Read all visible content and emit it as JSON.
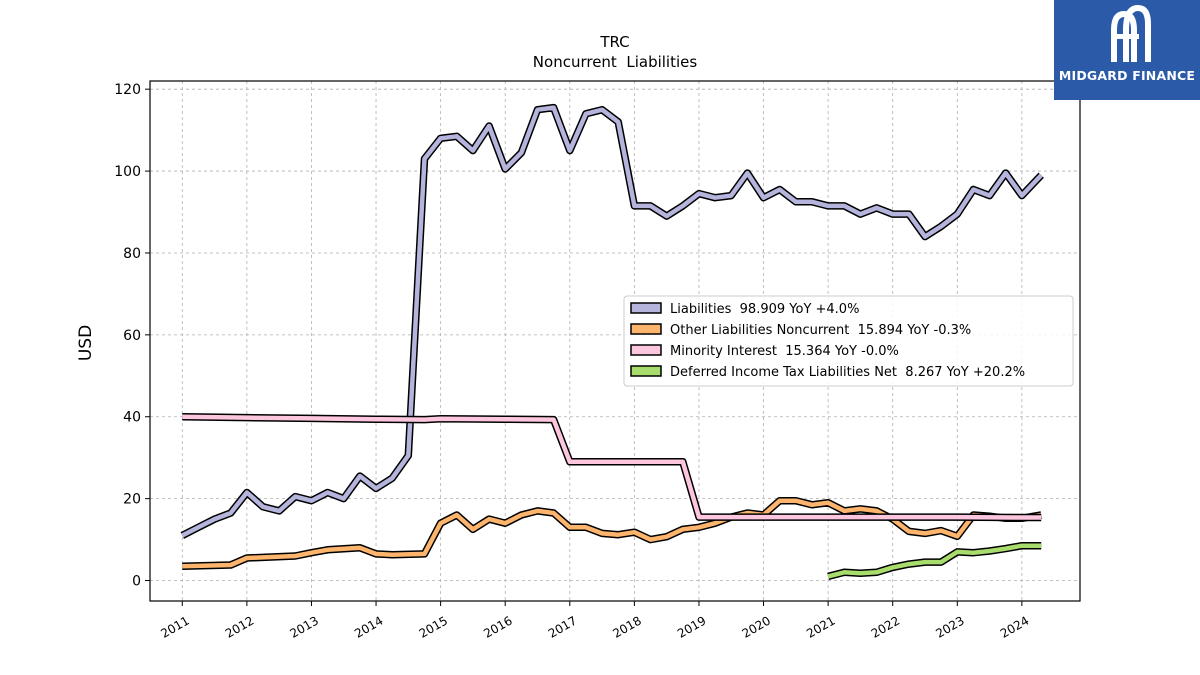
{
  "brand": {
    "name": "MIDGARD FINANCE",
    "color": "#2b5aa8"
  },
  "chart_data": {
    "type": "line",
    "title": "TRC",
    "subtitle": "Noncurrent  Liabilities",
    "ylabel": "USD",
    "xlabel": "",
    "ylim": [
      -5,
      122
    ],
    "xlim": [
      2010.5,
      2024.9
    ],
    "yticks": [
      0,
      20,
      40,
      60,
      80,
      100,
      120
    ],
    "xticks": [
      2011,
      2012,
      2013,
      2014,
      2015,
      2016,
      2017,
      2018,
      2019,
      2020,
      2021,
      2022,
      2023,
      2024
    ],
    "xtick_labels": [
      "2011",
      "2012",
      "2013",
      "2014",
      "2015",
      "2016",
      "2017",
      "2018",
      "2019",
      "2020",
      "2021",
      "2022",
      "2023",
      "2024"
    ],
    "grid": true,
    "legend_position": "center-right",
    "series": [
      {
        "name": "Liabilities",
        "legend": "Liabilities  98.909 YoY +4.0%",
        "color": "#b4b4dc",
        "points": [
          [
            2011.0,
            11
          ],
          [
            2011.25,
            13
          ],
          [
            2011.5,
            15
          ],
          [
            2011.75,
            16.5
          ],
          [
            2012.0,
            21.5
          ],
          [
            2012.25,
            18
          ],
          [
            2012.5,
            17
          ],
          [
            2012.75,
            20.5
          ],
          [
            2013.0,
            19.5
          ],
          [
            2013.25,
            21.5
          ],
          [
            2013.5,
            20
          ],
          [
            2013.75,
            25.5
          ],
          [
            2014.0,
            22.5
          ],
          [
            2014.25,
            25
          ],
          [
            2014.5,
            30.5
          ],
          [
            2014.75,
            103
          ],
          [
            2015.0,
            108
          ],
          [
            2015.25,
            108.5
          ],
          [
            2015.5,
            105
          ],
          [
            2015.75,
            111
          ],
          [
            2016.0,
            100.5
          ],
          [
            2016.25,
            104.5
          ],
          [
            2016.5,
            115
          ],
          [
            2016.75,
            115.5
          ],
          [
            2017.0,
            105
          ],
          [
            2017.25,
            114
          ],
          [
            2017.5,
            115
          ],
          [
            2017.75,
            112
          ],
          [
            2018.0,
            91.5
          ],
          [
            2018.25,
            91.5
          ],
          [
            2018.5,
            89
          ],
          [
            2018.75,
            91.5
          ],
          [
            2019.0,
            94.5
          ],
          [
            2019.25,
            93.5
          ],
          [
            2019.5,
            94
          ],
          [
            2019.75,
            99.5
          ],
          [
            2020.0,
            93.5
          ],
          [
            2020.25,
            95.5
          ],
          [
            2020.5,
            92.5
          ],
          [
            2020.75,
            92.5
          ],
          [
            2021.0,
            91.5
          ],
          [
            2021.25,
            91.5
          ],
          [
            2021.5,
            89.5
          ],
          [
            2021.75,
            91
          ],
          [
            2022.0,
            89.5
          ],
          [
            2022.25,
            89.5
          ],
          [
            2022.5,
            84
          ],
          [
            2022.75,
            86.5
          ],
          [
            2023.0,
            89.5
          ],
          [
            2023.25,
            95.5
          ],
          [
            2023.5,
            94
          ],
          [
            2023.75,
            99.5
          ],
          [
            2024.0,
            94
          ],
          [
            2024.3,
            99
          ]
        ]
      },
      {
        "name": "Other Liabilities Noncurrent",
        "legend": "Other Liabilities Noncurrent  15.894 YoY -0.3%",
        "color": "#fdb46c",
        "points": [
          [
            2011.0,
            3.5
          ],
          [
            2011.75,
            3.8
          ],
          [
            2012.0,
            5.5
          ],
          [
            2012.75,
            6
          ],
          [
            2013.0,
            6.8
          ],
          [
            2013.25,
            7.5
          ],
          [
            2013.75,
            8
          ],
          [
            2014.0,
            6.5
          ],
          [
            2014.25,
            6.3
          ],
          [
            2014.75,
            6.5
          ],
          [
            2015.0,
            14
          ],
          [
            2015.25,
            16
          ],
          [
            2015.5,
            12.5
          ],
          [
            2015.75,
            15
          ],
          [
            2016.0,
            14
          ],
          [
            2016.25,
            16
          ],
          [
            2016.5,
            17
          ],
          [
            2016.75,
            16.5
          ],
          [
            2017.0,
            13
          ],
          [
            2017.25,
            13
          ],
          [
            2017.5,
            11.5
          ],
          [
            2017.75,
            11.2
          ],
          [
            2018.0,
            11.8
          ],
          [
            2018.25,
            10
          ],
          [
            2018.5,
            10.7
          ],
          [
            2018.75,
            12.5
          ],
          [
            2019.0,
            13
          ],
          [
            2019.25,
            14
          ],
          [
            2019.5,
            15.5
          ],
          [
            2019.75,
            16.5
          ],
          [
            2020.0,
            16
          ],
          [
            2020.25,
            19.5
          ],
          [
            2020.5,
            19.5
          ],
          [
            2020.75,
            18.5
          ],
          [
            2021.0,
            19
          ],
          [
            2021.25,
            17
          ],
          [
            2021.5,
            17.5
          ],
          [
            2021.75,
            17
          ],
          [
            2022.0,
            15
          ],
          [
            2022.25,
            12
          ],
          [
            2022.5,
            11.5
          ],
          [
            2022.75,
            12.2
          ],
          [
            2023.0,
            10.8
          ],
          [
            2023.25,
            16
          ],
          [
            2023.5,
            15.7
          ],
          [
            2023.75,
            15.2
          ],
          [
            2024.0,
            15.2
          ],
          [
            2024.3,
            16
          ]
        ]
      },
      {
        "name": "Minority Interest",
        "legend": "Minority Interest  15.364 YoY -0.0%",
        "color": "#fcc6de",
        "points": [
          [
            2011.0,
            40
          ],
          [
            2012.0,
            39.8
          ],
          [
            2013.0,
            39.6
          ],
          [
            2014.0,
            39.4
          ],
          [
            2014.75,
            39.3
          ],
          [
            2015.0,
            39.5
          ],
          [
            2016.0,
            39.4
          ],
          [
            2016.75,
            39.3
          ],
          [
            2017.0,
            29
          ],
          [
            2018.0,
            29
          ],
          [
            2018.75,
            29
          ],
          [
            2019.0,
            15.5
          ],
          [
            2020.0,
            15.5
          ],
          [
            2021.0,
            15.5
          ],
          [
            2022.0,
            15.5
          ],
          [
            2023.0,
            15.5
          ],
          [
            2024.0,
            15.4
          ],
          [
            2024.3,
            15.4
          ]
        ]
      },
      {
        "name": "Deferred Income Tax Liabilities Net",
        "legend": "Deferred Income Tax Liabilities Net  8.267 YoY +20.2%",
        "color": "#a8dc6c",
        "points": [
          [
            2021.0,
            1
          ],
          [
            2021.25,
            2
          ],
          [
            2021.5,
            1.8
          ],
          [
            2021.75,
            2
          ],
          [
            2022.0,
            3.2
          ],
          [
            2022.25,
            4
          ],
          [
            2022.5,
            4.5
          ],
          [
            2022.75,
            4.5
          ],
          [
            2023.0,
            7
          ],
          [
            2023.25,
            6.8
          ],
          [
            2023.5,
            7.2
          ],
          [
            2023.75,
            7.8
          ],
          [
            2024.0,
            8.5
          ],
          [
            2024.3,
            8.5
          ]
        ]
      }
    ]
  }
}
